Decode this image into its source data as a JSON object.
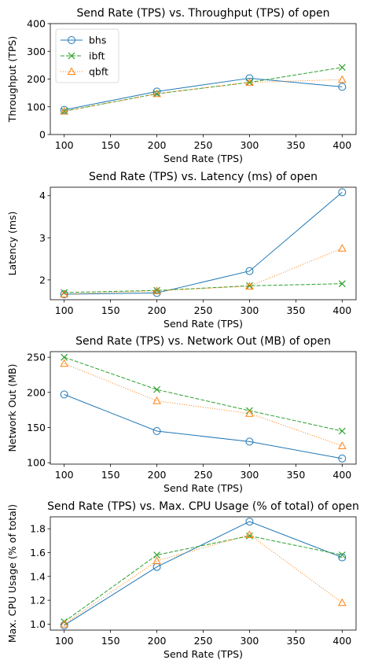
{
  "colors": {
    "bhs": "#1f77b4",
    "ibft": "#2ca02c",
    "qbft": "#ff7f0e"
  },
  "chart_data": [
    {
      "type": "line",
      "title": "Send Rate (TPS) vs. Throughput (TPS) of open",
      "xlabel": "Send Rate (TPS)",
      "ylabel": "Throughput (TPS)",
      "x": [
        100,
        200,
        300,
        400
      ],
      "xlim": [
        85,
        415
      ],
      "ylim": [
        0,
        400
      ],
      "xticks": [
        100,
        150,
        200,
        250,
        300,
        350,
        400
      ],
      "yticks": [
        0,
        100,
        200,
        300,
        400
      ],
      "legend": "top-left",
      "series": [
        {
          "name": "bhs",
          "values": [
            89,
            155,
            203,
            172
          ]
        },
        {
          "name": "ibft",
          "values": [
            84,
            147,
            188,
            242
          ]
        },
        {
          "name": "qbft",
          "values": [
            84,
            147,
            188,
            198
          ]
        }
      ]
    },
    {
      "type": "line",
      "title": "Send Rate (TPS) vs. Latency (ms) of open",
      "xlabel": "Send Rate (TPS)",
      "ylabel": "Latency (ms)",
      "x": [
        100,
        200,
        300,
        400
      ],
      "xlim": [
        85,
        415
      ],
      "ylim": [
        1.53,
        4.2
      ],
      "xticks": [
        100,
        150,
        200,
        250,
        300,
        350,
        400
      ],
      "yticks": [
        2,
        3,
        4
      ],
      "series": [
        {
          "name": "bhs",
          "values": [
            1.66,
            1.69,
            2.21,
            4.08
          ]
        },
        {
          "name": "ibft",
          "values": [
            1.7,
            1.75,
            1.86,
            1.91
          ]
        },
        {
          "name": "qbft",
          "values": [
            1.66,
            1.74,
            1.85,
            2.75
          ]
        }
      ]
    },
    {
      "type": "line",
      "title": "Send Rate (TPS) vs. Network Out (MB) of open",
      "xlabel": "Send Rate (TPS)",
      "ylabel": "Network Out (MB)",
      "x": [
        100,
        200,
        300,
        400
      ],
      "xlim": [
        85,
        415
      ],
      "ylim": [
        98,
        258
      ],
      "xticks": [
        100,
        150,
        200,
        250,
        300,
        350,
        400
      ],
      "yticks": [
        100,
        150,
        200,
        250
      ],
      "series": [
        {
          "name": "bhs",
          "values": [
            197,
            145,
            130,
            106
          ]
        },
        {
          "name": "ibft",
          "values": [
            250,
            204,
            174,
            145
          ]
        },
        {
          "name": "qbft",
          "values": [
            241,
            188,
            170,
            124
          ]
        }
      ]
    },
    {
      "type": "line",
      "title": "Send Rate (TPS) vs. Max. CPU Usage (% of total) of open",
      "xlabel": "Send Rate (TPS)",
      "ylabel": "Max. CPU Usage (% of total)",
      "x": [
        100,
        200,
        300,
        400
      ],
      "xlim": [
        85,
        415
      ],
      "ylim": [
        0.95,
        1.9
      ],
      "xticks": [
        100,
        150,
        200,
        250,
        300,
        350,
        400
      ],
      "yticks": [
        1.0,
        1.2,
        1.4,
        1.6,
        1.8
      ],
      "series": [
        {
          "name": "bhs",
          "values": [
            0.99,
            1.48,
            1.86,
            1.56
          ]
        },
        {
          "name": "ibft",
          "values": [
            1.02,
            1.58,
            1.74,
            1.58
          ]
        },
        {
          "name": "qbft",
          "values": [
            1.0,
            1.53,
            1.75,
            1.18
          ]
        }
      ]
    }
  ]
}
